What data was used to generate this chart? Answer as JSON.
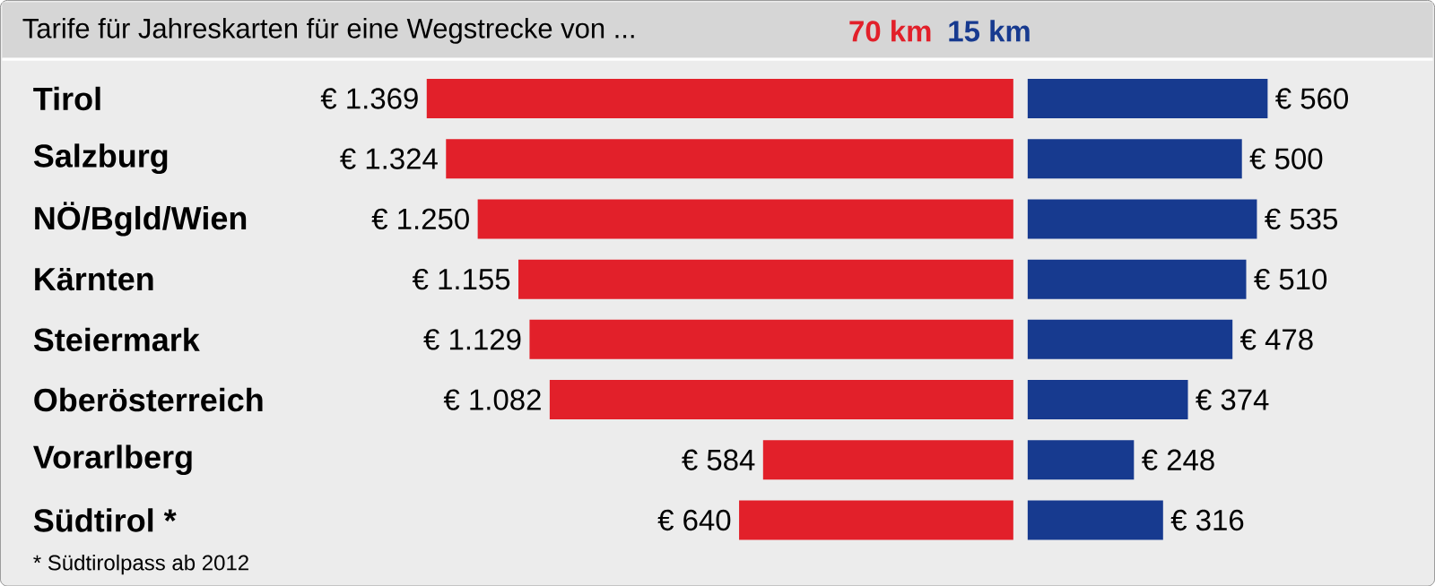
{
  "chart_data": [
    {
      "type": "bar",
      "orientation": "horizontal",
      "title": "Tarife für Jahreskarten für eine Wegstrecke von ...",
      "categories": [
        "Tirol",
        "Salzburg",
        "NÖ/Bgld/Wien",
        "Kärnten",
        "Steiermark",
        "Oberösterreich",
        "Vorarlberg",
        "Südtirol *"
      ],
      "tick_labels": "y",
      "annotations": [
        "* Südtirolpass ab 2012"
      ],
      "series": [
        {
          "name": "70 km",
          "color": "#e2202a",
          "values": [
            1369,
            1324,
            1250,
            1155,
            1129,
            1082,
            584,
            640
          ],
          "value_labels": [
            "€ 1.369",
            "€ 1.324",
            "€ 1.250",
            "€ 1.155",
            "€ 1.129",
            "€ 1.082",
            "€ 584",
            "€ 640"
          ]
        }
      ]
    },
    {
      "type": "bar",
      "orientation": "horizontal",
      "categories": [
        null,
        null,
        null,
        null,
        null,
        null,
        null,
        null
      ],
      "tick_labels": false,
      "series": [
        {
          "name": "15 km",
          "color": "#173a8f",
          "values": [
            560,
            500,
            535,
            510,
            478,
            374,
            248,
            316
          ],
          "value_labels": [
            "€ 560",
            "€ 500",
            "€ 535",
            "€ 510",
            "€ 478",
            "€ 374",
            "€ 248",
            "€ 316"
          ]
        }
      ]
    }
  ]
}
